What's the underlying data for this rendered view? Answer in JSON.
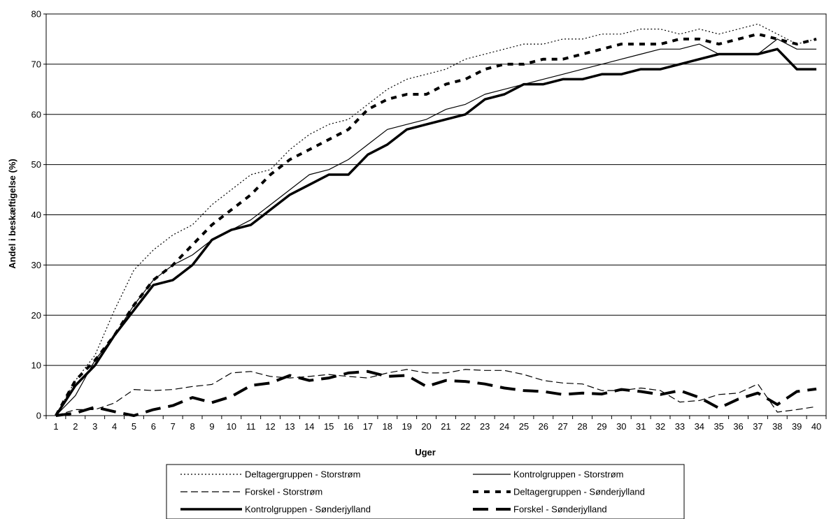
{
  "chart_data": {
    "type": "line",
    "title": "",
    "xlabel": "Uger",
    "ylabel": "Andel i beskæftigelse (%)",
    "ylim": [
      0,
      80
    ],
    "yticks": [
      0,
      10,
      20,
      30,
      40,
      50,
      60,
      70,
      80
    ],
    "grid": "horizontal",
    "legend_position": "bottom",
    "x": [
      1,
      2,
      3,
      4,
      5,
      6,
      7,
      8,
      9,
      10,
      11,
      12,
      13,
      14,
      15,
      16,
      17,
      18,
      19,
      20,
      21,
      22,
      23,
      24,
      25,
      26,
      27,
      28,
      29,
      30,
      31,
      32,
      33,
      34,
      35,
      36,
      37,
      38,
      39,
      40
    ],
    "series": [
      {
        "name": "Deltagergruppen - Storstrøm",
        "style": "dotted-thin",
        "values": [
          0,
          7,
          12,
          21,
          29,
          33,
          36,
          38,
          42,
          45,
          48,
          49,
          53,
          56,
          58,
          59,
          62,
          65,
          67,
          68,
          69,
          71,
          72,
          73,
          74,
          74,
          75,
          75,
          76,
          76,
          77,
          77,
          76,
          77,
          76,
          77,
          78,
          76,
          74,
          75
        ]
      },
      {
        "name": "Kontrolgruppen - Storstrøm",
        "style": "solid-thin",
        "values": [
          0,
          4,
          11,
          16,
          22,
          27,
          30,
          32,
          35,
          37,
          39,
          42,
          45,
          48,
          49,
          51,
          54,
          57,
          58,
          59,
          61,
          62,
          64,
          65,
          66,
          67,
          68,
          69,
          70,
          71,
          72,
          73,
          73,
          74,
          72,
          72,
          72,
          75,
          73,
          73
        ]
      },
      {
        "name": "Forskel - Storstrøm",
        "style": "dashed-thin",
        "values": [
          0,
          1.2,
          1.2,
          2.5,
          5.2,
          5.0,
          5.2,
          5.8,
          6.2,
          8.5,
          8.8,
          7.8,
          7.5,
          7.8,
          8.2,
          7.8,
          7.5,
          8.5,
          9.2,
          8.5,
          8.5,
          9.2,
          9.0,
          9.0,
          8.2,
          7.0,
          6.5,
          6.3,
          5.0,
          5.0,
          5.5,
          5.0,
          2.7,
          3.0,
          4.2,
          4.5,
          6.3,
          0.7,
          1.2,
          1.8
        ]
      },
      {
        "name": "Deltagergruppen - Sønderjylland",
        "style": "dashed-thick",
        "values": [
          0,
          7,
          11,
          16,
          22,
          27,
          30,
          34,
          38,
          41,
          44,
          48,
          51,
          53,
          55,
          57,
          61,
          63,
          64,
          64,
          66,
          67,
          69,
          70,
          70,
          71,
          71,
          72,
          73,
          74,
          74,
          74,
          75,
          75,
          74,
          75,
          76,
          75,
          74,
          75
        ]
      },
      {
        "name": "Kontrolgruppen - Sønderjylland",
        "style": "solid-thick",
        "values": [
          0,
          6,
          10,
          16,
          21,
          26,
          27,
          30,
          35,
          37,
          38,
          41,
          44,
          46,
          48,
          48,
          52,
          54,
          57,
          58,
          59,
          60,
          63,
          64,
          66,
          66,
          67,
          67,
          68,
          68,
          69,
          69,
          70,
          71,
          72,
          72,
          72,
          73,
          69,
          69
        ]
      },
      {
        "name": "Forskel - Sønderjylland",
        "style": "longdash-thick",
        "values": [
          0,
          0.5,
          1.7,
          0.8,
          0,
          1.2,
          2.0,
          3.6,
          2.6,
          3.8,
          6.0,
          6.5,
          8.0,
          7.0,
          7.5,
          8.5,
          8.8,
          7.8,
          8.0,
          5.8,
          7.0,
          6.8,
          6.3,
          5.5,
          5.0,
          4.8,
          4.2,
          4.5,
          4.3,
          5.2,
          4.8,
          4.2,
          5.0,
          3.6,
          1.5,
          3.3,
          4.5,
          2.2,
          4.8,
          5.3
        ]
      }
    ]
  }
}
